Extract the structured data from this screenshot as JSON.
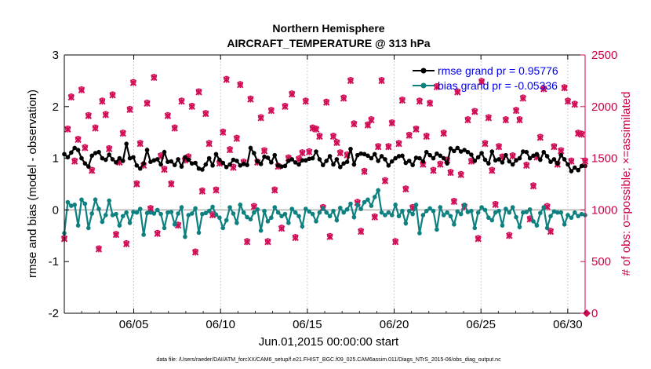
{
  "chart_data": {
    "type": "line",
    "title": "Northern Hemisphere",
    "subtitle": "AIRCRAFT_TEMPERATURE @ 313 hPa",
    "xlabel": "Jun.01,2015 00:00:00 start",
    "ylabel": "rmse and bias (model - observation)",
    "y2label": "# of obs: o=possible; ×=assimilated",
    "footer": "data file: /Users/raeder/DAI/ATM_forcXX/CAM6_setup/f.e21.FHIST_BGC.f09_025.CAM6assim.011/Diags_NTrS_2015-06/obs_diag_output.nc",
    "xlim": [
      1,
      31
    ],
    "ylim": [
      -2,
      3
    ],
    "y2lim": [
      0,
      2500
    ],
    "x_ticks": [
      5,
      10,
      15,
      20,
      25,
      30
    ],
    "x_tick_labels": [
      "06/05",
      "06/10",
      "06/15",
      "06/20",
      "06/25",
      "06/30"
    ],
    "y_ticks": [
      -2,
      -1,
      0,
      1,
      2,
      3
    ],
    "y_tick_labels": [
      "-2",
      "-1",
      "0",
      "1",
      "2",
      "3"
    ],
    "y2_ticks": [
      0,
      500,
      1000,
      1500,
      2000,
      2500
    ],
    "y2_tick_labels": [
      "0",
      "500",
      "1000",
      "1500",
      "2000",
      "2500"
    ],
    "legend_position": "top-right",
    "colors": {
      "rmse": "#000000",
      "bias": "#0e8080",
      "obs": "#d10a55",
      "zero_line": "#c0c0c0"
    },
    "series": [
      {
        "name": "rmse grand pr = 0.95776",
        "values": [
          1.08,
          1.02,
          1.11,
          1.2,
          1.16,
          1.0,
          0.9,
          0.84,
          1.05,
          1.1,
          1.12,
          1.0,
          0.97,
          1.07,
          0.98,
          0.92,
          1.0,
          0.95,
          1.28,
          1.0,
          1.02,
          0.86,
          0.8,
          0.9,
          1.16,
          0.93,
          0.96,
          0.98,
          0.88,
          1.12,
          0.93,
          0.94,
          0.87,
          0.98,
          0.84,
          1.02,
          0.97,
          0.9,
          0.91,
          0.8,
          0.78,
          0.88,
          1.0,
          0.86,
          1.08,
          0.97,
          0.91,
          0.83,
          0.88,
          0.97,
          0.95,
          0.86,
          0.89,
          0.87,
          1.2,
          1.1,
          0.94,
          0.89,
          1.03,
          1.01,
          0.92,
          1.06,
          0.86,
          0.84,
          0.85,
          0.95,
          0.98,
          0.92,
          0.88,
          0.96,
          0.96,
          0.99,
          1.0,
          1.13,
          0.98,
          0.87,
          0.95,
          1.04,
          0.88,
          0.98,
          0.83,
          0.9,
          0.93,
          1.18,
          0.88,
          1.06,
          1.09,
          1.08,
          1.05,
          1.0,
          1.08,
          0.95,
          1.04,
          0.98,
          0.86,
          0.94,
          1.0,
          1.04,
          1.05,
          0.91,
          0.95,
          0.87,
          1.01,
          1.0,
          0.94,
          1.12,
          1.06,
          1.0,
          1.09,
          1.05,
          1.0,
          0.9,
          1.19,
          1.14,
          1.2,
          1.13,
          1.16,
          1.12,
          1.07,
          0.95,
          1.02,
          1.1,
          0.97,
          0.9,
          1.13,
          0.96,
          0.98,
          0.92,
          1.06,
          0.94,
          0.88,
          0.96,
          1.0,
          1.13,
          1.12,
          1.0,
          1.05,
          1.08,
          0.97,
          1.12,
          1.04,
          0.93,
          0.98,
          0.9,
          1.06,
          0.98,
          0.88,
          0.75,
          0.82,
          0.77,
          0.85,
          0.85
        ]
      },
      {
        "name": "bias grand pr = -0.05336",
        "values": [
          -0.45,
          0.15,
          0.08,
          0.1,
          -0.3,
          0.2,
          0.12,
          -0.35,
          -0.07,
          0.2,
          0.02,
          -0.23,
          -0.1,
          0.18,
          -0.1,
          -0.08,
          -0.3,
          -0.12,
          -0.05,
          -0.25,
          -0.04,
          -0.05,
          0.02,
          -0.48,
          -0.06,
          -0.05,
          -0.07,
          0.0,
          -0.08,
          -0.35,
          -0.05,
          -0.04,
          -0.28,
          -0.07,
          0.05,
          -0.52,
          -0.1,
          -0.07,
          0.03,
          -0.44,
          -0.08,
          -0.06,
          -0.02,
          0.06,
          -0.09,
          -0.15,
          -0.35,
          -0.2,
          0.05,
          -0.07,
          -0.25,
          0.1,
          -0.05,
          -0.14,
          -0.18,
          -0.05,
          0.01,
          -0.4,
          -0.02,
          -0.22,
          -0.15,
          0.05,
          -0.05,
          -0.12,
          -0.08,
          -0.25,
          0.02,
          -0.05,
          -0.12,
          -0.32,
          0.02,
          -0.03,
          -0.08,
          -0.22,
          -0.05,
          0.03,
          -0.05,
          -0.12,
          -0.02,
          -0.2,
          0.04,
          -0.05,
          0.01,
          0.12,
          -0.14,
          0.1,
          0.02,
          0.15,
          0.2,
          0.08,
          0.25,
          0.38,
          -0.05,
          -0.1,
          -0.05,
          -0.1,
          0.1,
          -0.12,
          -0.02,
          -0.26,
          -0.02,
          -0.08,
          0.1,
          -0.45,
          -0.1,
          -0.02,
          0.03,
          -0.02,
          -0.38,
          0.05,
          -0.1,
          -0.05,
          -0.12,
          -0.28,
          -0.03,
          -0.08,
          0.1,
          -0.04,
          -0.02,
          -0.35,
          -0.05,
          0.05,
          0.0,
          -0.15,
          -0.2,
          -0.05,
          -0.02,
          -0.3,
          0.02,
          -0.05,
          0.05,
          -0.14,
          -0.33,
          -0.05,
          -0.04,
          0.01,
          -0.22,
          -0.3,
          -0.06,
          0.05,
          -0.35,
          -0.12,
          -0.03,
          -0.05,
          -0.05,
          -0.28,
          -0.1,
          -0.15,
          -0.05,
          -0.12,
          -0.08,
          -0.1
        ]
      },
      {
        "name": "obs possible",
        "values": [
          730,
          1790,
          2100,
          1480,
          1690,
          2170,
          1610,
          1920,
          1390,
          1800,
          630,
          2060,
          1930,
          1600,
          2120,
          770,
          1470,
          1750,
          680,
          1980,
          2240,
          1260,
          1650,
          1440,
          2040,
          1020,
          2290,
          780,
          1530,
          1400,
          1920,
          1260,
          1800,
          860,
          2060,
          1490,
          1520,
          2010,
          600,
          2150,
          1190,
          1940,
          1650,
          960,
          1200,
          1460,
          1760,
          2270,
          1590,
          1420,
          1700,
          2220,
          1470,
          700,
          2080,
          1040,
          1470,
          1900,
          1580,
          700,
          1970,
          1200,
          1430,
          830,
          2010,
          1510,
          2130,
          740,
          1500,
          1560,
          2060,
          1570,
          1800,
          1790,
          1720,
          1030,
          2050,
          750,
          1720,
          1660,
          1560,
          2090,
          1540,
          2260,
          1840,
          1080,
          800,
          1380,
          1830,
          1880,
          940,
          1620,
          2260,
          1290,
          1620,
          1850,
          700,
          1650,
          2070,
          1210,
          1730,
          1030,
          1790,
          2060,
          1450,
          1720,
          2040,
          1390,
          2200,
          1450,
          1750,
          1490,
          1370,
          1090,
          2150,
          1350,
          1040,
          1880,
          1480,
          1960,
          730,
          2250,
          1650,
          1900,
          1390,
          1060,
          1620,
          1520,
          1880,
          760,
          1530,
          1970,
          1880,
          2090,
          1440,
          920,
          1240,
          1520,
          1710,
          2180,
          1040,
          800,
          1620,
          1450,
          1580,
          2190,
          2060,
          1480,
          2030,
          1750,
          1740,
          1480
        ]
      },
      {
        "name": "obs assimilated",
        "values": [
          720,
          1780,
          2090,
          1470,
          1680,
          2160,
          1600,
          1910,
          1380,
          1790,
          620,
          2050,
          1920,
          1590,
          2110,
          760,
          1460,
          1740,
          670,
          1970,
          2230,
          1250,
          1640,
          1430,
          2030,
          1010,
          2280,
          770,
          1520,
          1390,
          1910,
          1250,
          1790,
          850,
          2050,
          1480,
          1510,
          2000,
          590,
          2140,
          1180,
          1930,
          1640,
          950,
          1190,
          1450,
          1750,
          2260,
          1580,
          1410,
          1690,
          2210,
          1460,
          690,
          2070,
          1030,
          1460,
          1890,
          1570,
          690,
          1960,
          1190,
          1420,
          820,
          2000,
          1500,
          2120,
          730,
          1490,
          1550,
          2050,
          1560,
          1790,
          1780,
          1710,
          1020,
          2040,
          740,
          1710,
          1650,
          1550,
          2080,
          1530,
          2250,
          1830,
          1070,
          790,
          1370,
          1820,
          1870,
          930,
          1610,
          2250,
          1280,
          1610,
          1840,
          690,
          1640,
          2060,
          1200,
          1720,
          1020,
          1780,
          2050,
          1440,
          1710,
          2030,
          1380,
          2190,
          1440,
          1740,
          1480,
          1360,
          1080,
          2140,
          1340,
          1030,
          1870,
          1470,
          1950,
          720,
          2240,
          1640,
          1890,
          1380,
          1050,
          1610,
          1510,
          1870,
          750,
          1520,
          1960,
          1870,
          2080,
          1430,
          910,
          1230,
          1510,
          1700,
          2170,
          1030,
          790,
          1610,
          1440,
          1570,
          2180,
          2050,
          1470,
          2020,
          1740,
          1730,
          1470
        ]
      }
    ],
    "obs_zero_marker": {
      "x": 31,
      "value": 0
    }
  }
}
